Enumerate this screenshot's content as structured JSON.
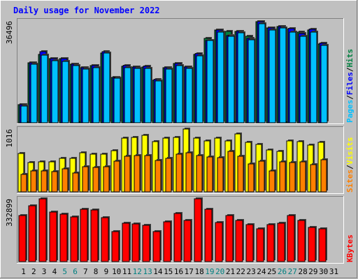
{
  "title": "Daily usage for November 2022",
  "colors": {
    "background": "#c0c0c0",
    "panel": "#c0c0c0",
    "title_text": "#0000ff",
    "hits": "#008040",
    "files": "#0000ff",
    "pages": "#00c0ff",
    "visits": "#ffff00",
    "sites": "#ff8000",
    "kbytes": "#ff0000",
    "weekend_label": "#008080",
    "day_label": "#000000"
  },
  "chart_data": [
    {
      "type": "bar",
      "title": "Daily usage for November 2022",
      "ylabel_parts": [
        "Pages",
        "Files",
        "Hits"
      ],
      "ymax_label": "36496",
      "ylim": [
        0,
        36496
      ],
      "categories": [
        "1",
        "2",
        "3",
        "4",
        "5",
        "6",
        "7",
        "8",
        "9",
        "10",
        "11",
        "12",
        "13",
        "14",
        "15",
        "16",
        "17",
        "18",
        "19",
        "20",
        "21",
        "22",
        "23",
        "24",
        "25",
        "26",
        "27",
        "28",
        "29",
        "30"
      ],
      "series": [
        {
          "name": "Hits",
          "color": "#008040",
          "values": [
            6600,
            21600,
            24400,
            23000,
            22900,
            21000,
            19700,
            20400,
            25000,
            16300,
            20300,
            19900,
            19900,
            15300,
            19700,
            21200,
            19900,
            24600,
            30200,
            33200,
            32700,
            32800,
            31100,
            36300,
            34100,
            34600,
            33500,
            32500,
            33300,
            28300
          ]
        },
        {
          "name": "Files",
          "color": "#0000ff",
          "values": [
            6500,
            21500,
            25400,
            23000,
            22900,
            21100,
            19700,
            20500,
            25600,
            16300,
            20400,
            19900,
            20300,
            15400,
            19700,
            21200,
            19900,
            24700,
            29600,
            33200,
            31200,
            32800,
            30200,
            36200,
            34100,
            34500,
            33800,
            32100,
            33400,
            28400
          ]
        },
        {
          "name": "Pages",
          "color": "#00c0ff",
          "values": [
            6100,
            21000,
            24300,
            22200,
            22000,
            20500,
            19200,
            19700,
            24900,
            16000,
            19700,
            19600,
            19400,
            14900,
            19300,
            20600,
            19400,
            24000,
            29400,
            32600,
            30900,
            32300,
            29800,
            35500,
            33300,
            33900,
            32400,
            30900,
            32600,
            27700
          ]
        }
      ]
    },
    {
      "type": "bar",
      "ylabel_parts": [
        "Sites",
        "Visits"
      ],
      "ymax_label": "1016",
      "ylim": [
        0,
        1016
      ],
      "categories": [
        "1",
        "2",
        "3",
        "4",
        "5",
        "6",
        "7",
        "8",
        "9",
        "10",
        "11",
        "12",
        "13",
        "14",
        "15",
        "16",
        "17",
        "18",
        "19",
        "20",
        "21",
        "22",
        "23",
        "24",
        "25",
        "26",
        "27",
        "28",
        "29",
        "30"
      ],
      "series": [
        {
          "name": "Visits",
          "color": "#ffff00",
          "values": [
            618,
            476,
            480,
            480,
            538,
            538,
            632,
            610,
            614,
            663,
            872,
            876,
            911,
            811,
            872,
            876,
            1016,
            872,
            828,
            872,
            828,
            933,
            802,
            771,
            676,
            650,
            820,
            815,
            754,
            798
          ]
        },
        {
          "name": "Sites",
          "color": "#ff8000",
          "values": [
            287,
            343,
            343,
            326,
            370,
            300,
            402,
            397,
            406,
            500,
            581,
            590,
            585,
            505,
            544,
            610,
            628,
            585,
            562,
            555,
            650,
            575,
            452,
            500,
            338,
            490,
            474,
            487,
            445,
            515
          ]
        }
      ]
    },
    {
      "type": "bar",
      "ylabel_parts": [
        "KBytes"
      ],
      "ymax_label": "332899",
      "ylim": [
        0,
        332899
      ],
      "categories": [
        "1",
        "2",
        "3",
        "4",
        "5",
        "6",
        "7",
        "8",
        "9",
        "10",
        "11",
        "12",
        "13",
        "14",
        "15",
        "16",
        "17",
        "18",
        "19",
        "20",
        "21",
        "22",
        "23",
        "24",
        "25",
        "26",
        "27",
        "28",
        "29",
        "30"
      ],
      "series": [
        {
          "name": "KBytes",
          "color": "#ff0000",
          "values": [
            244000,
            297000,
            332899,
            263000,
            252000,
            236000,
            277000,
            275000,
            232000,
            158000,
            204000,
            200000,
            191000,
            158000,
            210000,
            255000,
            219000,
            332899,
            276000,
            207000,
            244000,
            219000,
            195000,
            175000,
            195000,
            205000,
            245000,
            219000,
            180000,
            172000
          ]
        }
      ]
    }
  ],
  "x_axis": {
    "labels": [
      "1",
      "2",
      "3",
      "4",
      "5",
      "6",
      "7",
      "8",
      "9",
      "10",
      "11",
      "12",
      "13",
      "14",
      "15",
      "16",
      "17",
      "18",
      "19",
      "20",
      "21",
      "22",
      "23",
      "24",
      "25",
      "26",
      "27",
      "28",
      "29",
      "30",
      "31"
    ],
    "weekend_days": [
      "5",
      "6",
      "12",
      "13",
      "19",
      "20",
      "26",
      "27"
    ]
  }
}
